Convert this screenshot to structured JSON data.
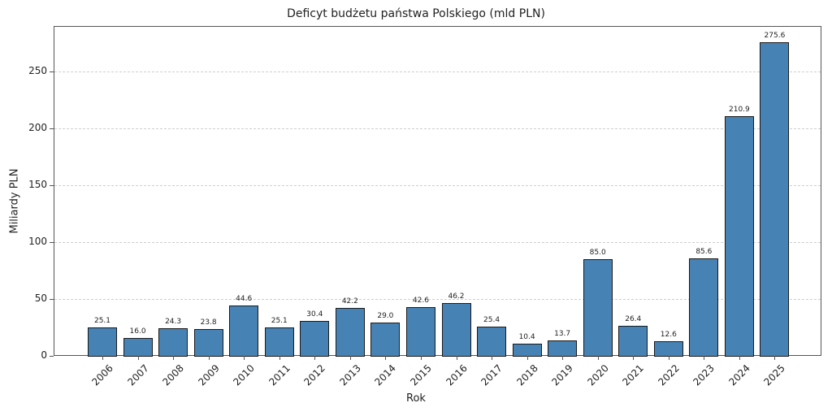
{
  "chart_data": {
    "type": "bar",
    "title": "Deficyt budżetu państwa Polskiego (mld PLN)",
    "xlabel": "Rok",
    "ylabel": "Miliardy PLN",
    "categories": [
      "2006",
      "2007",
      "2008",
      "2009",
      "2010",
      "2011",
      "2012",
      "2013",
      "2014",
      "2015",
      "2016",
      "2017",
      "2018",
      "2019",
      "2020",
      "2021",
      "2022",
      "2023",
      "2024",
      "2025"
    ],
    "values": [
      25.1,
      16.0,
      24.3,
      23.8,
      44.6,
      25.1,
      30.4,
      42.2,
      29.0,
      42.6,
      46.2,
      25.4,
      10.4,
      13.7,
      85.0,
      26.4,
      12.6,
      85.6,
      210.9,
      275.6
    ],
    "value_labels": [
      "25.1",
      "16.0",
      "24.3",
      "23.8",
      "44.6",
      "25.1",
      "30.4",
      "42.2",
      "29.0",
      "42.6",
      "46.2",
      "25.4",
      "10.4",
      "13.7",
      "85.0",
      "26.4",
      "12.6",
      "85.6",
      "210.9",
      "275.6"
    ],
    "yticks": [
      0,
      50,
      100,
      150,
      200,
      250
    ],
    "ylim": [
      0,
      290
    ],
    "grid": {
      "axis": "y",
      "style": "dashed"
    },
    "legend": null,
    "bar_color": "#4682b4",
    "edge_color": "#1a1a1a"
  }
}
